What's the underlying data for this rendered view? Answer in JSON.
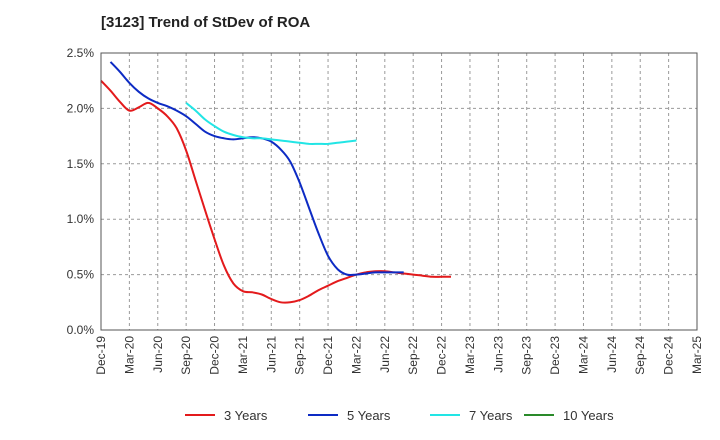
{
  "chart_data": {
    "type": "line",
    "title": "[3123]  Trend of StDev of ROA",
    "xlabel": "",
    "ylabel": "",
    "y_ticks": [
      "0.0%",
      "0.5%",
      "1.0%",
      "1.5%",
      "2.0%",
      "2.5%"
    ],
    "ylim": [
      0,
      2.5
    ],
    "x_ticks": [
      "Dec-19",
      "Mar-20",
      "Jun-20",
      "Sep-20",
      "Dec-20",
      "Mar-21",
      "Jun-21",
      "Sep-21",
      "Dec-21",
      "Mar-22",
      "Jun-22",
      "Sep-22",
      "Dec-22",
      "Mar-23",
      "Jun-23",
      "Sep-23",
      "Dec-23",
      "Mar-24",
      "Jun-24",
      "Sep-24",
      "Dec-24",
      "Mar-25"
    ],
    "grid": true,
    "legend_position": "bottom",
    "series": [
      {
        "name": "3 Years",
        "color": "#e31a1c",
        "start_index": 0,
        "values": [
          2.25,
          2.16,
          2.06,
          1.98,
          2.01,
          2.05,
          2.0,
          1.93,
          1.82,
          1.62,
          1.35,
          1.08,
          0.82,
          0.58,
          0.42,
          0.35,
          0.34,
          0.32,
          0.28,
          0.25,
          0.25,
          0.27,
          0.31,
          0.36,
          0.4,
          0.44,
          0.47,
          0.5,
          0.52,
          0.53,
          0.53,
          0.52,
          0.51,
          0.5,
          0.49,
          0.48,
          0.48,
          0.48
        ]
      },
      {
        "name": "5 Years",
        "color": "#0d2bc4",
        "start_index": 1,
        "values": [
          2.42,
          2.33,
          2.23,
          2.15,
          2.09,
          2.05,
          2.02,
          1.98,
          1.93,
          1.86,
          1.79,
          1.75,
          1.73,
          1.72,
          1.73,
          1.74,
          1.73,
          1.7,
          1.63,
          1.52,
          1.33,
          1.1,
          0.87,
          0.67,
          0.55,
          0.5,
          0.5,
          0.51,
          0.52,
          0.52,
          0.52,
          0.52
        ]
      },
      {
        "name": "7 Years",
        "color": "#22e5e5",
        "start_index": 9,
        "values": [
          2.05,
          1.98,
          1.9,
          1.84,
          1.79,
          1.76,
          1.74,
          1.73,
          1.73,
          1.72,
          1.71,
          1.7,
          1.69,
          1.68,
          1.68,
          1.68,
          1.69,
          1.7,
          1.71
        ]
      },
      {
        "name": "10 Years",
        "color": "#2a8a2a",
        "start_index": 0,
        "values": []
      }
    ]
  }
}
